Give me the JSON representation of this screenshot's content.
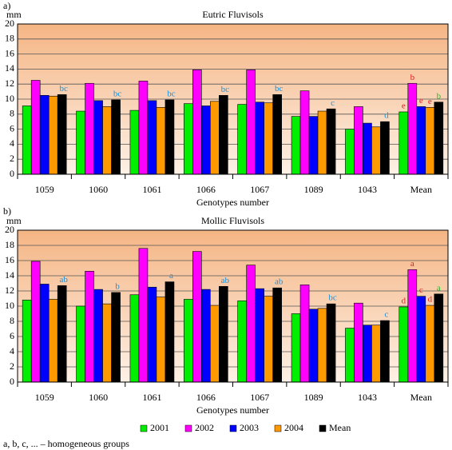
{
  "panel_labels": [
    "a)",
    "b)"
  ],
  "footnote": "a, b, c, ... – homogeneous groups",
  "chart_data": [
    {
      "type": "bar",
      "title": "Eutric Fluvisols",
      "y_label": "mm",
      "x_label": "Genotypes number",
      "categories": [
        "1059",
        "1060",
        "1061",
        "1066",
        "1067",
        "1089",
        "1043",
        "Mean"
      ],
      "ylim": [
        0,
        20
      ],
      "yticks": [
        0,
        2,
        4,
        6,
        8,
        10,
        12,
        14,
        16,
        18,
        20
      ],
      "grid": true,
      "series": [
        {
          "name": "2001",
          "color": "#00ee00",
          "values": [
            9.1,
            8.4,
            8.5,
            9.4,
            9.3,
            7.7,
            6.0,
            8.3
          ],
          "groups": [
            null,
            null,
            null,
            null,
            null,
            null,
            null,
            "e"
          ]
        },
        {
          "name": "2002",
          "color": "#ff00ff",
          "values": [
            12.5,
            12.1,
            12.4,
            13.9,
            13.9,
            11.1,
            9.0,
            12.1
          ],
          "groups": [
            null,
            null,
            null,
            null,
            null,
            null,
            null,
            "b"
          ]
        },
        {
          "name": "2003",
          "color": "#0000ff",
          "values": [
            10.5,
            9.8,
            9.8,
            9.1,
            9.6,
            7.7,
            6.8,
            9.0
          ],
          "groups": [
            null,
            null,
            null,
            null,
            null,
            null,
            null,
            "e"
          ]
        },
        {
          "name": "2004",
          "color": "#ff9900",
          "values": [
            10.4,
            9.0,
            8.9,
            9.7,
            9.5,
            8.4,
            6.3,
            8.9
          ],
          "groups": [
            null,
            null,
            null,
            null,
            null,
            null,
            null,
            "e"
          ]
        },
        {
          "name": "Mean",
          "color": "#000000",
          "values": [
            10.6,
            9.9,
            9.9,
            10.5,
            10.6,
            8.7,
            7.0,
            9.6
          ],
          "groups": [
            "bc",
            "bc",
            "bc",
            "bc",
            "bc",
            "c",
            "d",
            "b"
          ]
        }
      ]
    },
    {
      "type": "bar",
      "title": "Mollic Fluvisols",
      "y_label": "mm",
      "x_label": "Genotypes number",
      "categories": [
        "1059",
        "1060",
        "1061",
        "1066",
        "1067",
        "1089",
        "1043",
        "Mean"
      ],
      "ylim": [
        0,
        20
      ],
      "yticks": [
        0,
        2,
        4,
        6,
        8,
        10,
        12,
        14,
        16,
        18,
        20
      ],
      "grid": true,
      "series": [
        {
          "name": "2001",
          "color": "#00ee00",
          "values": [
            10.8,
            10.0,
            11.5,
            10.9,
            10.7,
            9.0,
            7.1,
            9.9
          ],
          "groups": [
            null,
            null,
            null,
            null,
            null,
            null,
            null,
            "d"
          ]
        },
        {
          "name": "2002",
          "color": "#ff00ff",
          "values": [
            15.9,
            14.6,
            17.6,
            17.2,
            15.4,
            12.8,
            10.4,
            14.8
          ],
          "groups": [
            null,
            null,
            null,
            null,
            null,
            null,
            null,
            "a"
          ]
        },
        {
          "name": "2003",
          "color": "#0000ff",
          "values": [
            12.9,
            12.2,
            12.5,
            12.2,
            12.3,
            9.6,
            7.5,
            11.3
          ],
          "groups": [
            null,
            null,
            null,
            null,
            null,
            null,
            null,
            "c"
          ]
        },
        {
          "name": "2004",
          "color": "#ff9900",
          "values": [
            10.9,
            10.3,
            11.2,
            10.1,
            11.3,
            9.7,
            7.5,
            10.1
          ],
          "groups": [
            null,
            null,
            null,
            null,
            null,
            null,
            null,
            "d"
          ]
        },
        {
          "name": "Mean",
          "color": "#000000",
          "values": [
            12.7,
            11.8,
            13.2,
            12.6,
            12.4,
            10.3,
            8.1,
            11.6
          ],
          "groups": [
            "ab",
            "b",
            "a",
            "ab",
            "ab",
            "bc",
            "c",
            "a"
          ]
        }
      ]
    }
  ]
}
